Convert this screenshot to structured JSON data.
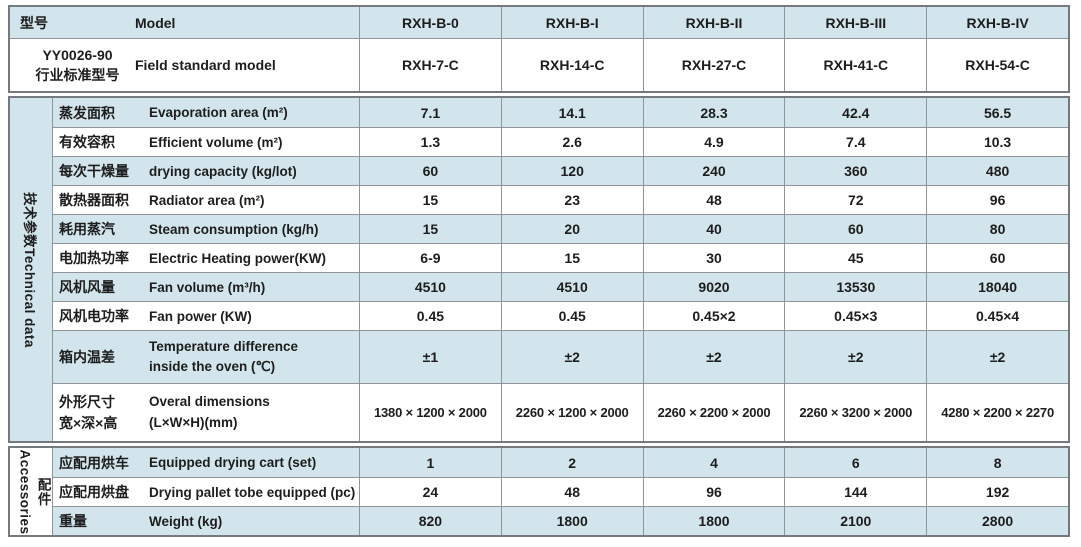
{
  "colors": {
    "row_blue": "#d3e5ec",
    "row_white": "#ffffff",
    "grid_line": "#8f9496",
    "outer_border": "#73797c",
    "text": "#1d1d1d"
  },
  "header": {
    "model_row": {
      "cn": "型号",
      "en": "Model",
      "values": [
        "RXH-B-0",
        "RXH-B-I",
        "RXH-B-II",
        "RXH-B-III",
        "RXH-B-IV"
      ]
    },
    "standard_row": {
      "cn_line1": "YY0026-90",
      "cn_line2": "行业标准型号",
      "en": "Field standard model",
      "values": [
        "RXH-7-C",
        "RXH-14-C",
        "RXH-27-C",
        "RXH-41-C",
        "RXH-54-C"
      ]
    }
  },
  "technical": {
    "group_label": "技术参数Technical data",
    "rows": [
      {
        "cn": "蒸发面积",
        "en": "Evaporation area (m²)",
        "values": [
          "7.1",
          "14.1",
          "28.3",
          "42.4",
          "56.5"
        ]
      },
      {
        "cn": "有效容积",
        "en": "Efficient volume (m²)",
        "values": [
          "1.3",
          "2.6",
          "4.9",
          "7.4",
          "10.3"
        ]
      },
      {
        "cn": "每次干燥量",
        "en": "drying capacity (kg/lot)",
        "values": [
          "60",
          "120",
          "240",
          "360",
          "480"
        ]
      },
      {
        "cn": "散热器面积",
        "en": "Radiator area (m²)",
        "values": [
          "15",
          "23",
          "48",
          "72",
          "96"
        ]
      },
      {
        "cn": "耗用蒸汽",
        "en": "Steam consumption (kg/h)",
        "values": [
          "15",
          "20",
          "40",
          "60",
          "80"
        ]
      },
      {
        "cn": "电加热功率",
        "en": "Electric Heating power(KW)",
        "values": [
          "6-9",
          "15",
          "30",
          "45",
          "60"
        ]
      },
      {
        "cn": "风机风量",
        "en": "Fan volume (m³/h)",
        "values": [
          "4510",
          "4510",
          "9020",
          "13530",
          "18040"
        ]
      },
      {
        "cn": "风机电功率",
        "en": "Fan power (KW)",
        "values": [
          "0.45",
          "0.45",
          "0.45×2",
          "0.45×3",
          "0.45×4"
        ]
      },
      {
        "cn": "箱内温差",
        "en1": "Temperature difference",
        "en2": "inside the oven (℃)",
        "values": [
          "±1",
          "±2",
          "±2",
          "±2",
          "±2"
        ]
      },
      {
        "cn1": "外形尺寸",
        "cn2": "宽×深×高",
        "en1": "Overal dimensions",
        "en2": "(L×W×H)(mm)",
        "values": [
          "1380 × 1200 × 2000",
          "2260 × 1200 × 2000",
          "2260 × 2200 × 2000",
          "2260 × 3200 × 2000",
          "4280 × 2200 × 2270"
        ]
      }
    ]
  },
  "accessories": {
    "group_label_en": "Accessories",
    "group_label_cn": "配件",
    "rows": [
      {
        "cn": "应配用烘车",
        "en": "Equipped drying cart (set)",
        "values": [
          "1",
          "2",
          "4",
          "6",
          "8"
        ]
      },
      {
        "cn": "应配用烘盘",
        "en": "Drying pallet tobe equipped (pc)",
        "values": [
          "24",
          "48",
          "96",
          "144",
          "192"
        ]
      },
      {
        "cn": "重量",
        "en": "Weight (kg)",
        "values": [
          "820",
          "1800",
          "1800",
          "2100",
          "2800"
        ]
      }
    ]
  }
}
